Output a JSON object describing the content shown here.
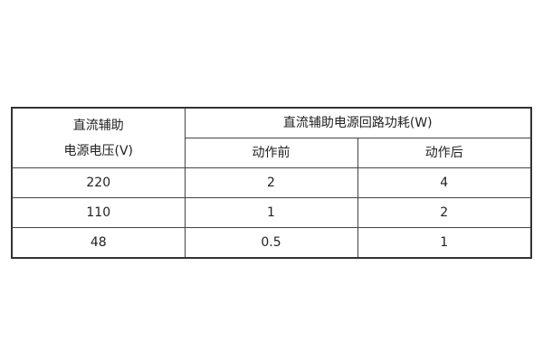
{
  "table": {
    "header": {
      "voltage_line1": "直流辅助",
      "voltage_line2": "电源电压(V)",
      "power_group": "直流辅助电源回路功耗(W)",
      "before": "动作前",
      "after": "动作后"
    },
    "rows": [
      {
        "voltage": "220",
        "before": "2",
        "after": "4"
      },
      {
        "voltage": "110",
        "before": "1",
        "after": "2"
      },
      {
        "voltage": "48",
        "before": "0.5",
        "after": "1"
      }
    ]
  }
}
